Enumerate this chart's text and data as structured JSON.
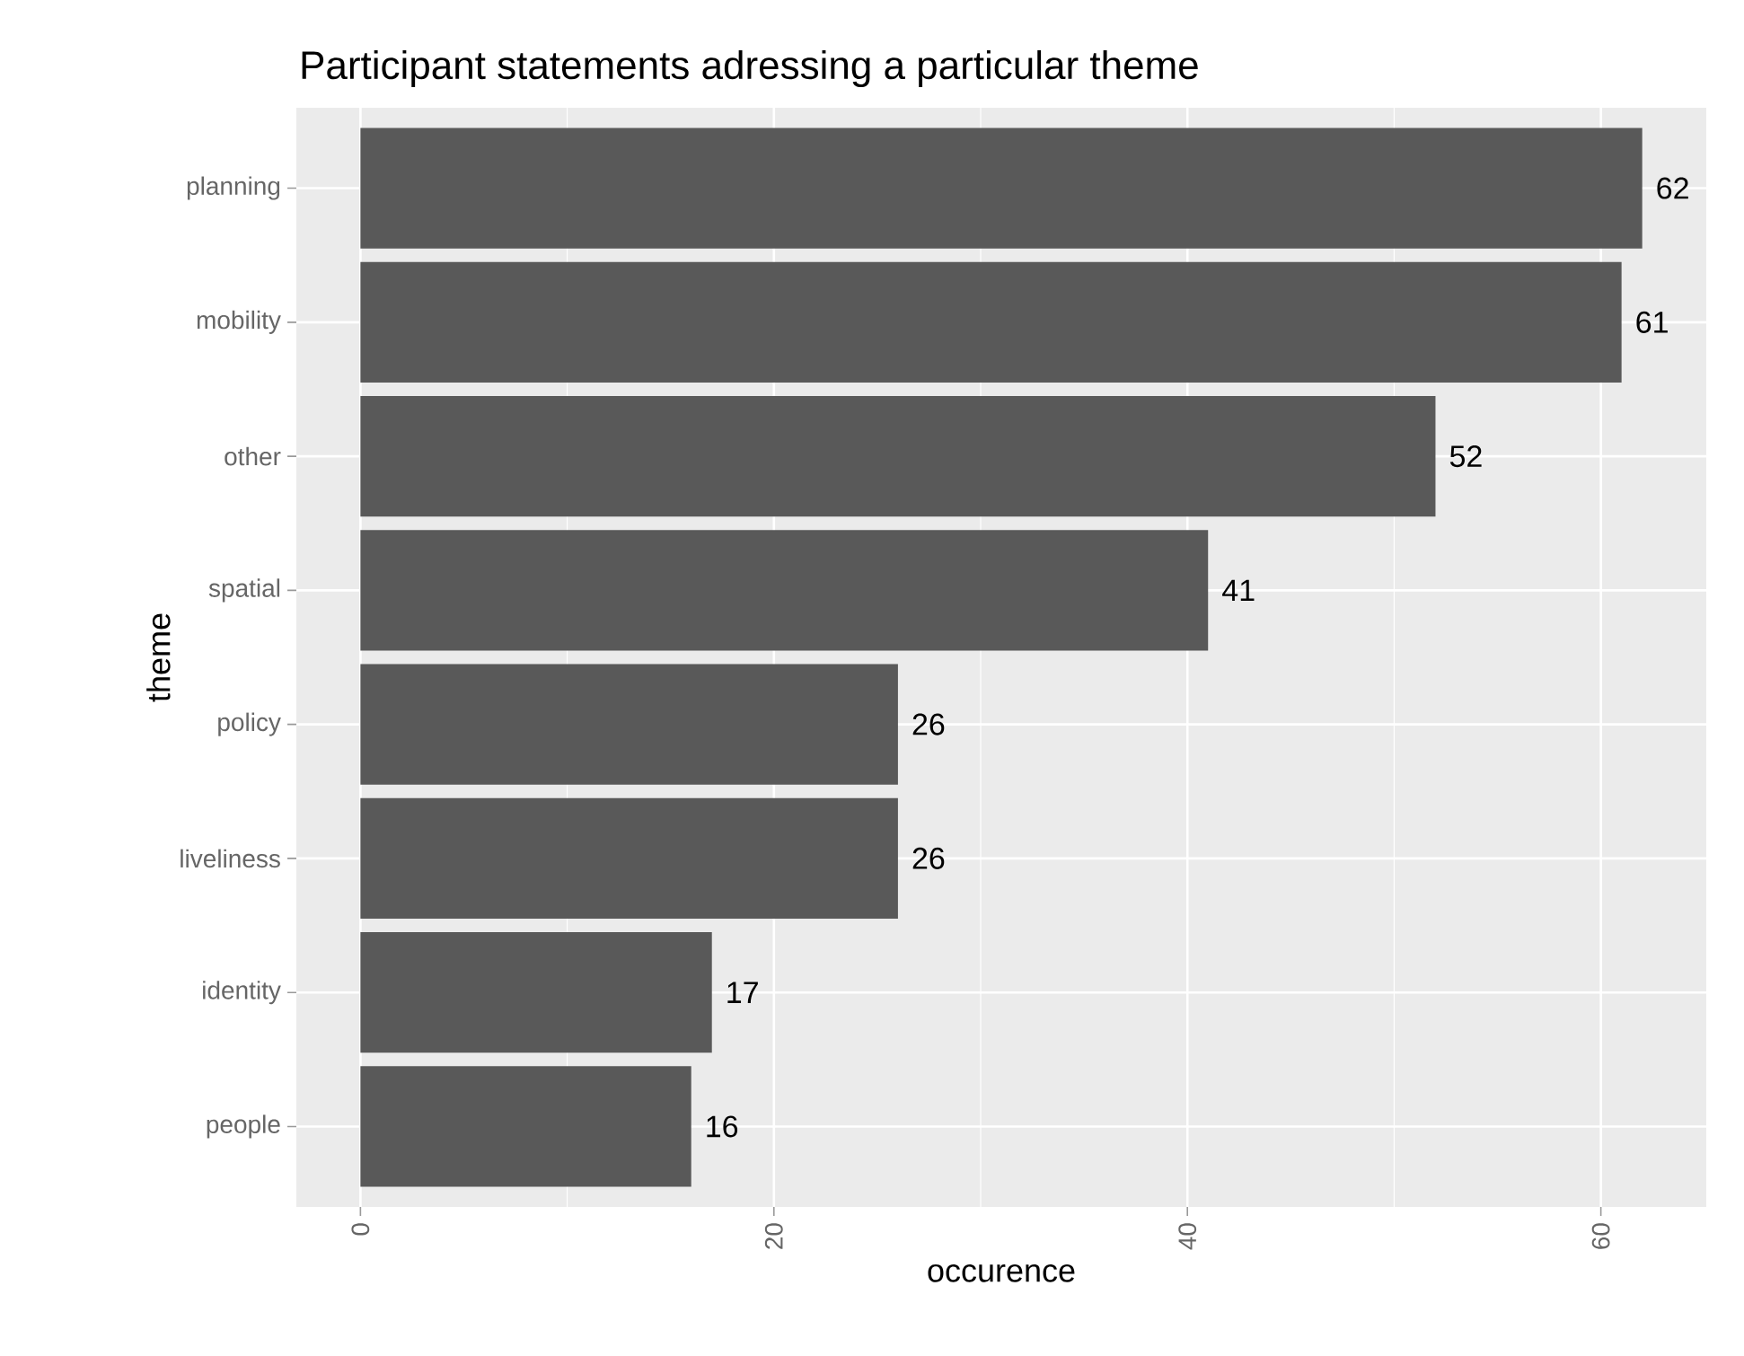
{
  "chart_data": {
    "type": "bar",
    "orientation": "horizontal",
    "title": "Participant statements adressing a particular theme",
    "xlabel": "occurence",
    "ylabel": "theme",
    "categories": [
      "planning",
      "mobility",
      "other",
      "spatial",
      "policy",
      "liveliness",
      "identity",
      "people"
    ],
    "values": [
      62,
      61,
      52,
      41,
      26,
      26,
      17,
      16
    ],
    "color": "#595959",
    "xlim": [
      -3.1,
      65.1
    ],
    "xticks": [
      0,
      20,
      40,
      60
    ],
    "grid": true,
    "data_labels": true
  }
}
